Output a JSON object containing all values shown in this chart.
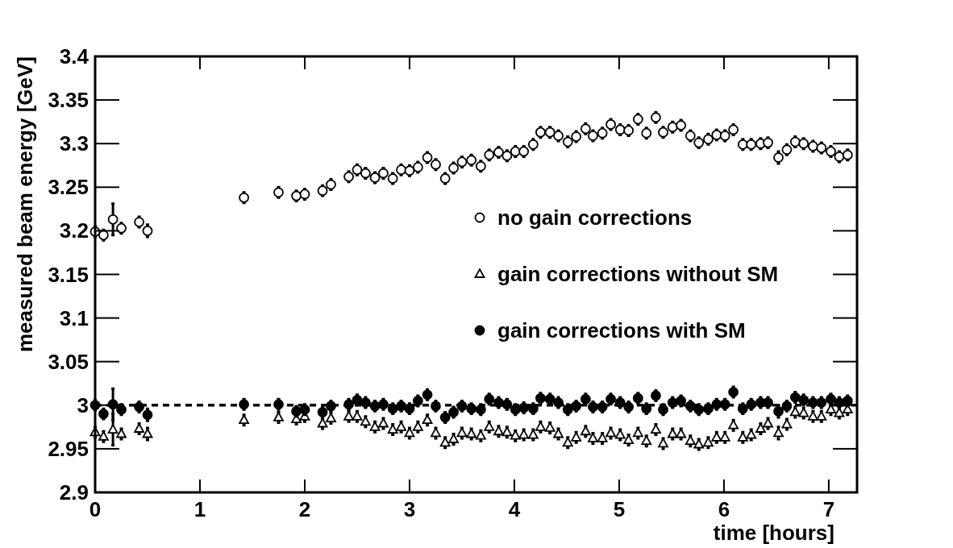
{
  "chart_data": {
    "type": "scatter",
    "xlabel": "time [hours]",
    "ylabel": "measured beam energy [GeV]",
    "xlim": [
      0,
      7.27
    ],
    "xticks": [
      0,
      1,
      2,
      3,
      4,
      5,
      6,
      7
    ],
    "ylim": [
      2.9,
      3.4
    ],
    "yticks": [
      2.9,
      2.95,
      3,
      3.05,
      3.1,
      3.15,
      3.2,
      3.25,
      3.3,
      3.35,
      3.4
    ],
    "x": [
      0,
      0.08,
      0.17,
      0.25,
      0.42,
      0.5,
      1.42,
      1.75,
      1.92,
      2.0,
      2.17,
      2.25,
      2.42,
      2.5,
      2.58,
      2.67,
      2.75,
      2.84,
      2.92,
      3.0,
      3.08,
      3.17,
      3.25,
      3.34,
      3.42,
      3.5,
      3.59,
      3.68,
      3.76,
      3.85,
      3.93,
      4.01,
      4.09,
      4.18,
      4.25,
      4.34,
      4.42,
      4.51,
      4.59,
      4.68,
      4.75,
      4.84,
      4.92,
      5.01,
      5.09,
      5.18,
      5.26,
      5.35,
      5.42,
      5.51,
      5.59,
      5.68,
      5.76,
      5.85,
      5.93,
      6.01,
      6.09,
      6.18,
      6.26,
      6.35,
      6.42,
      6.52,
      6.6,
      6.68,
      6.76,
      6.85,
      6.93,
      7.02,
      7.1,
      7.18
    ],
    "series": [
      {
        "name": "no gain corrections",
        "color": "#ffffff",
        "marker": "circle",
        "values": [
          3.199,
          3.195,
          3.213,
          3.203,
          3.21,
          3.2,
          3.238,
          3.244,
          3.24,
          3.242,
          3.246,
          3.253,
          3.262,
          3.27,
          3.266,
          3.261,
          3.266,
          3.26,
          3.27,
          3.269,
          3.273,
          3.284,
          3.276,
          3.26,
          3.272,
          3.279,
          3.281,
          3.274,
          3.287,
          3.29,
          3.286,
          3.291,
          3.291,
          3.299,
          3.313,
          3.313,
          3.309,
          3.302,
          3.308,
          3.317,
          3.309,
          3.312,
          3.322,
          3.316,
          3.315,
          3.328,
          3.312,
          3.33,
          3.313,
          3.319,
          3.321,
          3.309,
          3.301,
          3.305,
          3.31,
          3.309,
          3.316,
          3.299,
          3.299,
          3.3,
          3.301,
          3.284,
          3.293,
          3.302,
          3.3,
          3.297,
          3.295,
          3.291,
          3.285,
          3.287
        ],
        "errors": [
          0.006,
          0.006,
          0.018,
          0.006,
          0.006,
          0.007,
          0.006,
          0.006,
          0.006,
          0.006,
          0.006,
          0.006,
          0.006,
          0.006,
          0.006,
          0.006,
          0.006,
          0.006,
          0.006,
          0.006,
          0.006,
          0.006,
          0.006,
          0.006,
          0.006,
          0.006,
          0.006,
          0.006,
          0.006,
          0.006,
          0.006,
          0.006,
          0.006,
          0.006,
          0.006,
          0.006,
          0.006,
          0.006,
          0.006,
          0.006,
          0.006,
          0.006,
          0.006,
          0.006,
          0.006,
          0.006,
          0.006,
          0.006,
          0.006,
          0.006,
          0.006,
          0.006,
          0.006,
          0.006,
          0.006,
          0.006,
          0.006,
          0.006,
          0.006,
          0.006,
          0.006,
          0.007,
          0.006,
          0.006,
          0.006,
          0.006,
          0.006,
          0.006,
          0.006,
          0.006
        ]
      },
      {
        "name": "gain corrections without SM",
        "color": "#ffffff",
        "marker": "triangle",
        "values": [
          2.969,
          2.964,
          2.972,
          2.967,
          2.973,
          2.967,
          2.983,
          2.986,
          2.984,
          2.987,
          2.979,
          2.985,
          2.987,
          2.987,
          2.981,
          2.975,
          2.979,
          2.972,
          2.975,
          2.968,
          2.975,
          2.983,
          2.968,
          2.957,
          2.961,
          2.968,
          2.967,
          2.965,
          2.975,
          2.97,
          2.969,
          2.965,
          2.966,
          2.966,
          2.975,
          2.974,
          2.967,
          2.957,
          2.963,
          2.97,
          2.962,
          2.962,
          2.968,
          2.966,
          2.96,
          2.968,
          2.959,
          2.972,
          2.956,
          2.967,
          2.967,
          2.959,
          2.955,
          2.957,
          2.963,
          2.963,
          2.977,
          2.963,
          2.966,
          2.973,
          2.979,
          2.968,
          2.978,
          2.992,
          2.991,
          2.987,
          2.987,
          2.995,
          2.991,
          2.995
        ],
        "errors": [
          0.006,
          0.006,
          0.018,
          0.006,
          0.006,
          0.007,
          0.006,
          0.006,
          0.006,
          0.006,
          0.006,
          0.006,
          0.006,
          0.006,
          0.006,
          0.006,
          0.006,
          0.006,
          0.006,
          0.006,
          0.006,
          0.006,
          0.006,
          0.006,
          0.006,
          0.006,
          0.006,
          0.006,
          0.006,
          0.006,
          0.006,
          0.006,
          0.006,
          0.006,
          0.006,
          0.006,
          0.006,
          0.006,
          0.006,
          0.006,
          0.006,
          0.006,
          0.006,
          0.006,
          0.006,
          0.006,
          0.006,
          0.006,
          0.006,
          0.006,
          0.006,
          0.006,
          0.006,
          0.006,
          0.006,
          0.006,
          0.006,
          0.006,
          0.006,
          0.006,
          0.006,
          0.007,
          0.006,
          0.006,
          0.006,
          0.006,
          0.006,
          0.006,
          0.006,
          0.006
        ]
      },
      {
        "name": "gain corrections with SM",
        "color": "#000000",
        "marker": "circle",
        "values": [
          3.0,
          2.99,
          3.001,
          2.995,
          2.998,
          2.989,
          3.001,
          3.001,
          2.993,
          2.995,
          2.992,
          2.999,
          3.001,
          3.006,
          3.003,
          2.999,
          3.001,
          2.996,
          2.999,
          2.996,
          3.005,
          3.012,
          2.999,
          2.986,
          2.992,
          2.999,
          2.996,
          2.995,
          3.007,
          3.003,
          3.001,
          2.995,
          2.997,
          2.996,
          3.008,
          3.007,
          3.003,
          2.995,
          2.999,
          3.007,
          2.998,
          2.998,
          3.007,
          3.003,
          2.998,
          3.008,
          2.996,
          3.011,
          2.995,
          3.003,
          3.005,
          2.999,
          2.995,
          2.996,
          3.001,
          3.001,
          3.015,
          2.996,
          3.001,
          3.003,
          3.003,
          2.993,
          2.999,
          3.009,
          3.006,
          3.003,
          3.003,
          3.007,
          3.003,
          3.005
        ],
        "errors": [
          0.006,
          0.006,
          0.018,
          0.006,
          0.006,
          0.007,
          0.006,
          0.006,
          0.006,
          0.006,
          0.006,
          0.006,
          0.006,
          0.006,
          0.006,
          0.006,
          0.006,
          0.006,
          0.006,
          0.006,
          0.006,
          0.006,
          0.006,
          0.006,
          0.006,
          0.006,
          0.006,
          0.006,
          0.006,
          0.006,
          0.006,
          0.006,
          0.006,
          0.006,
          0.006,
          0.006,
          0.006,
          0.006,
          0.006,
          0.006,
          0.006,
          0.006,
          0.006,
          0.006,
          0.006,
          0.006,
          0.006,
          0.006,
          0.006,
          0.006,
          0.006,
          0.006,
          0.006,
          0.006,
          0.006,
          0.006,
          0.006,
          0.006,
          0.006,
          0.006,
          0.006,
          0.007,
          0.006,
          0.006,
          0.006,
          0.006,
          0.006,
          0.006,
          0.006,
          0.006
        ]
      }
    ],
    "ref_lines": [
      {
        "axis": "y",
        "value": 3,
        "line_style": "dashed",
        "color": "#000000"
      }
    ],
    "legend": "right",
    "grid": false
  }
}
